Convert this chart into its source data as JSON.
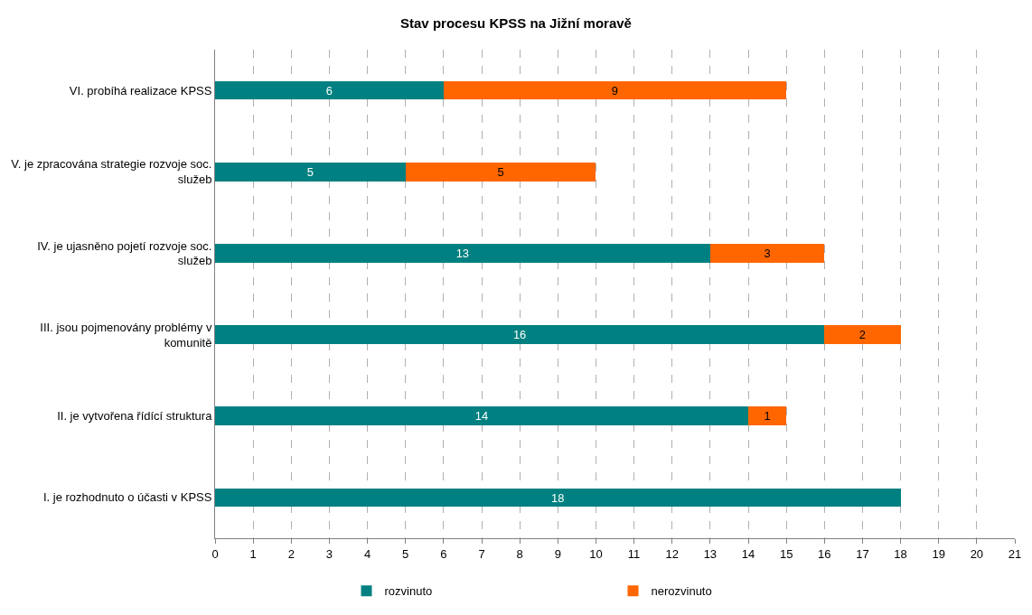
{
  "chart_data": {
    "type": "bar",
    "orientation": "horizontal",
    "stacked": true,
    "title": "Stav procesu KPSS na Jižní moravě",
    "categories": [
      "VI. probíhá realizace KPSS",
      "V. je zpracována strategie rozvoje soc. služeb",
      "IV. je ujasněno pojetí rozvoje soc. služeb",
      "III. jsou pojmenovány problémy v komunitě",
      "II. je vytvořena řídící struktura",
      "I. je rozhodnuto o účasti v KPSS"
    ],
    "series": [
      {
        "name": "rozvinuto",
        "color": "#008080",
        "values": [
          6,
          5,
          13,
          16,
          14,
          18
        ]
      },
      {
        "name": "nerozvinuto",
        "color": "#ff6600",
        "values": [
          9,
          5,
          3,
          2,
          1,
          null
        ]
      }
    ],
    "xlim": [
      0,
      21
    ],
    "xticks": [
      0,
      1,
      2,
      3,
      4,
      5,
      6,
      7,
      8,
      9,
      10,
      11,
      12,
      13,
      14,
      15,
      16,
      17,
      18,
      19,
      20,
      21
    ],
    "grid": "x",
    "legend": "bottom",
    "data_labels": true
  }
}
